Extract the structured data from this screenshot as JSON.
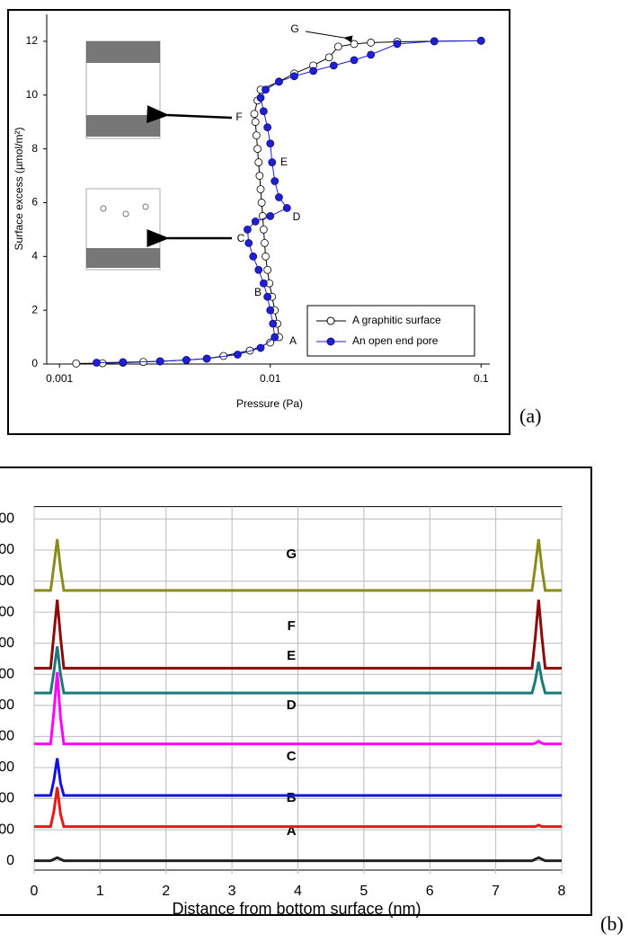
{
  "chart_data": [
    {
      "type": "line",
      "panel_label": "(a)",
      "x_label": "Pressure (Pa)",
      "y_label": "Surface excess (µmol/m²)",
      "log_x": true,
      "xlim": [
        0.00087,
        0.11
      ],
      "xticks": [
        0.001,
        0.01,
        0.1
      ],
      "ylim": [
        0,
        13
      ],
      "yticks": [
        0,
        2,
        4,
        6,
        8,
        10,
        12
      ],
      "grid": false,
      "legend": "lower right",
      "markers": true,
      "annotations": [
        "G",
        "F",
        "E",
        "D",
        "C",
        "B",
        "A"
      ],
      "series": [
        {
          "name": "A graphitic surface",
          "color": "#000000",
          "filled": false,
          "x": [
            0.0012,
            0.0016,
            0.002,
            0.0025,
            0.003,
            0.004,
            0.005,
            0.006,
            0.008,
            0.01,
            0.011,
            0.0108,
            0.0105,
            0.0102,
            0.0099,
            0.0097,
            0.0095,
            0.0094,
            0.0093,
            0.0092,
            0.0091,
            0.009,
            0.0089,
            0.0088,
            0.0087,
            0.0086,
            0.0085,
            0.0084,
            0.0087,
            0.009,
            0.011,
            0.013,
            0.016,
            0.019,
            0.021,
            0.025,
            0.03,
            0.04,
            0.06,
            0.1
          ],
          "values": [
            0.02,
            0.03,
            0.05,
            0.08,
            0.1,
            0.15,
            0.2,
            0.3,
            0.5,
            0.8,
            1.0,
            1.5,
            2,
            2.5,
            3,
            3.5,
            4,
            4.5,
            5,
            5.5,
            6,
            6.5,
            7,
            7.5,
            8,
            8.5,
            9,
            9.3,
            9.8,
            10.2,
            10.5,
            10.8,
            11.1,
            11.4,
            11.8,
            11.9,
            11.95,
            11.98,
            12,
            12.02
          ]
        },
        {
          "name": "An open end pore",
          "color": "#1f1fd6",
          "filled": true,
          "x": [
            0.0015,
            0.002,
            0.003,
            0.004,
            0.005,
            0.007,
            0.009,
            0.0105,
            0.0103,
            0.01,
            0.0097,
            0.0093,
            0.0088,
            0.0083,
            0.0079,
            0.0078,
            0.0085,
            0.01,
            0.012,
            0.011,
            0.0105,
            0.0102,
            0.01,
            0.0097,
            0.0093,
            0.009,
            0.0095,
            0.011,
            0.013,
            0.016,
            0.02,
            0.025,
            0.03,
            0.04,
            0.06,
            0.1
          ],
          "values": [
            0.05,
            0.07,
            0.1,
            0.15,
            0.2,
            0.35,
            0.6,
            1,
            1.5,
            2,
            2.5,
            3,
            3.5,
            4,
            4.5,
            5,
            5.3,
            5.5,
            5.8,
            6.2,
            6.8,
            7.5,
            8.2,
            8.8,
            9.4,
            9.9,
            10.2,
            10.5,
            10.7,
            10.9,
            11.1,
            11.3,
            11.5,
            11.9,
            12,
            12.02
          ]
        }
      ]
    },
    {
      "type": "line",
      "panel_label": "(b)",
      "x_label": "Distance from bottom surface (nm)",
      "log_x": false,
      "xlim": [
        0,
        8
      ],
      "xticks": [
        0,
        1,
        2,
        3,
        4,
        5,
        6,
        7,
        8
      ],
      "ylim": [
        -0.3,
        11.4
      ],
      "yticks": [
        0,
        {
          "value": 1,
          "label": "00"
        },
        {
          "value": 2,
          "label": "00"
        },
        {
          "value": 3,
          "label": "00"
        },
        {
          "value": 4,
          "label": "00"
        },
        {
          "value": 5,
          "label": "00"
        },
        {
          "value": 6,
          "label": "00"
        },
        {
          "value": 7,
          "label": "00"
        },
        {
          "value": 8,
          "label": "00"
        },
        {
          "value": 9,
          "label": "00"
        },
        {
          "value": 10,
          "label": "00"
        },
        {
          "value": 11,
          "label": "00"
        }
      ],
      "grid": true,
      "legend": false,
      "markers": false,
      "x": [
        0,
        0.25,
        0.3,
        0.35,
        0.4,
        0.45,
        7.55,
        7.6,
        7.65,
        7.7,
        7.75,
        8
      ],
      "series": [
        {
          "name": "A",
          "color": "#222222",
          "values": [
            0,
            0,
            0.05,
            0.1,
            0.05,
            0,
            0,
            0.05,
            0.1,
            0.05,
            0,
            0
          ]
        },
        {
          "name": "B",
          "color": "#e81818",
          "values": [
            1.1,
            1.1,
            1.6,
            2.37,
            1.5,
            1.1,
            1.1,
            1.1,
            1.15,
            1.1,
            1.1,
            1.1
          ]
        },
        {
          "name": "C",
          "color": "#1010e0",
          "values": [
            2.1,
            2.1,
            2.6,
            3.3,
            2.5,
            2.1,
            2.1,
            2.1,
            2.1,
            2.1,
            2.1,
            2.1
          ]
        },
        {
          "name": "D",
          "color": "#ff00ff",
          "values": [
            3.76,
            3.76,
            4.8,
            6.07,
            4.6,
            3.76,
            3.76,
            3.78,
            3.85,
            3.78,
            3.76,
            3.76
          ]
        },
        {
          "name": "E",
          "color": "#1a7a7a",
          "values": [
            5.4,
            5.4,
            6.1,
            6.9,
            6.0,
            5.4,
            5.4,
            5.8,
            6.4,
            5.8,
            5.4,
            5.4
          ]
        },
        {
          "name": "F",
          "color": "#8b0a0a",
          "values": [
            6.2,
            6.2,
            7.3,
            8.4,
            7.2,
            6.2,
            6.2,
            7.2,
            8.4,
            7.2,
            6.2,
            6.2
          ]
        },
        {
          "name": "G",
          "color": "#8b8b1a",
          "values": [
            8.7,
            8.7,
            9.5,
            10.35,
            9.4,
            8.7,
            8.7,
            9.5,
            10.35,
            9.4,
            8.7,
            8.7
          ]
        }
      ]
    }
  ]
}
